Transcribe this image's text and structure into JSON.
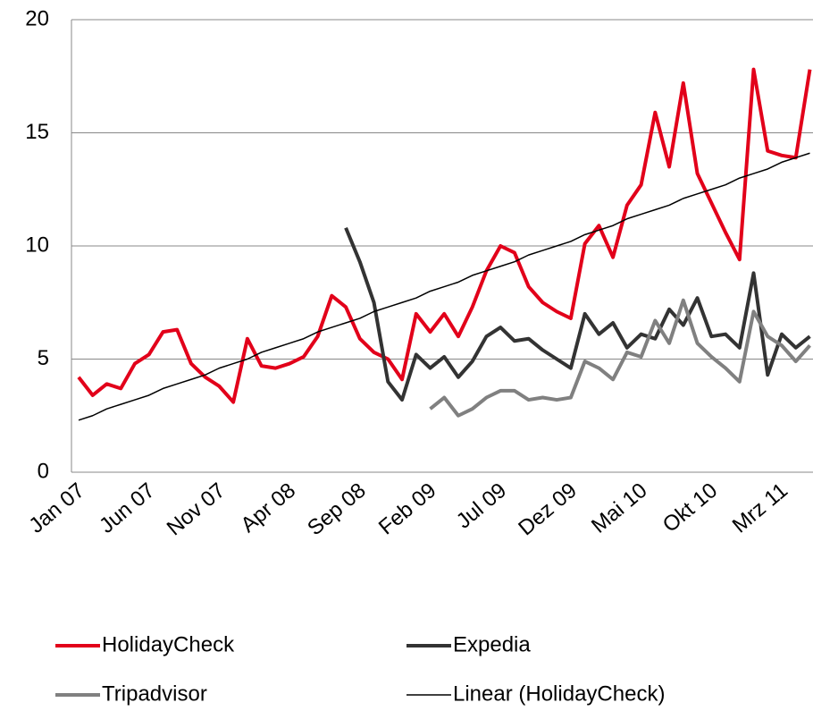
{
  "chart_data": {
    "type": "line",
    "categories": [
      "Jan 07",
      null,
      null,
      null,
      null,
      "Jun 07",
      null,
      null,
      null,
      null,
      "Nov 07",
      null,
      null,
      null,
      null,
      "Apr 08",
      null,
      null,
      null,
      null,
      "Sep 08",
      null,
      null,
      null,
      null,
      "Feb 09",
      null,
      null,
      null,
      null,
      "Jul 09",
      null,
      null,
      null,
      null,
      "Dez 09",
      null,
      null,
      null,
      null,
      "Mai 10",
      null,
      null,
      null,
      null,
      "Okt 10",
      null,
      null,
      null,
      null,
      "Mrz 11",
      null,
      null
    ],
    "series": [
      {
        "name": "HolidayCheck",
        "color": "#e2001a",
        "width": 4,
        "values": [
          4.2,
          3.4,
          3.9,
          3.7,
          4.8,
          5.2,
          6.2,
          6.3,
          4.8,
          4.2,
          3.8,
          3.1,
          5.9,
          4.7,
          4.6,
          4.8,
          5.1,
          6.0,
          7.8,
          7.3,
          5.9,
          5.3,
          5.0,
          4.1,
          7.0,
          6.2,
          7.0,
          6.0,
          7.3,
          8.9,
          10.0,
          9.7,
          8.2,
          7.5,
          7.1,
          6.8,
          10.1,
          10.9,
          9.5,
          11.8,
          12.7,
          15.9,
          13.5,
          17.2,
          13.2,
          11.9,
          10.6,
          9.4,
          17.8,
          14.2,
          14.0,
          13.9,
          17.8
        ]
      },
      {
        "name": "Expedia",
        "color": "#333333",
        "width": 4,
        "values": [
          null,
          null,
          null,
          null,
          null,
          null,
          null,
          null,
          null,
          null,
          null,
          null,
          null,
          null,
          null,
          null,
          null,
          null,
          null,
          10.8,
          9.3,
          7.5,
          4.0,
          3.2,
          5.2,
          4.6,
          5.1,
          4.2,
          4.9,
          6.0,
          6.4,
          5.8,
          5.9,
          5.4,
          5.0,
          4.6,
          7.0,
          6.1,
          6.6,
          5.5,
          6.1,
          5.9,
          7.2,
          6.5,
          7.7,
          6.0,
          6.1,
          5.5,
          8.8,
          4.3,
          6.1,
          5.5,
          6.0
        ]
      },
      {
        "name": "Tripadvisor",
        "color": "#808080",
        "width": 4,
        "values": [
          null,
          null,
          null,
          null,
          null,
          null,
          null,
          null,
          null,
          null,
          null,
          null,
          null,
          null,
          null,
          null,
          null,
          null,
          null,
          null,
          null,
          null,
          null,
          null,
          null,
          2.8,
          3.3,
          2.5,
          2.8,
          3.3,
          3.6,
          3.6,
          3.2,
          3.3,
          3.2,
          3.3,
          4.9,
          4.6,
          4.1,
          5.3,
          5.1,
          6.7,
          5.7,
          7.6,
          5.7,
          5.1,
          4.6,
          4.0,
          7.1,
          6.0,
          5.6,
          4.9,
          5.6
        ]
      },
      {
        "name": "Linear (HolidayCheck)",
        "color": "#000000",
        "width": 1.5,
        "values": [
          2.3,
          2.5,
          2.8,
          3.0,
          3.2,
          3.4,
          3.7,
          3.9,
          4.1,
          4.3,
          4.6,
          4.8,
          5.0,
          5.3,
          5.5,
          5.7,
          5.9,
          6.2,
          6.4,
          6.6,
          6.8,
          7.1,
          7.3,
          7.5,
          7.7,
          8.0,
          8.2,
          8.4,
          8.7,
          8.9,
          9.1,
          9.3,
          9.6,
          9.8,
          10.0,
          10.2,
          10.5,
          10.7,
          10.9,
          11.2,
          11.4,
          11.6,
          11.8,
          12.1,
          12.3,
          12.5,
          12.7,
          13.0,
          13.2,
          13.4,
          13.7,
          13.9,
          14.1
        ]
      }
    ],
    "ylim": [
      0,
      20
    ],
    "yticks": [
      0,
      5,
      10,
      15,
      20
    ],
    "grid": true,
    "legend": "bottom"
  }
}
